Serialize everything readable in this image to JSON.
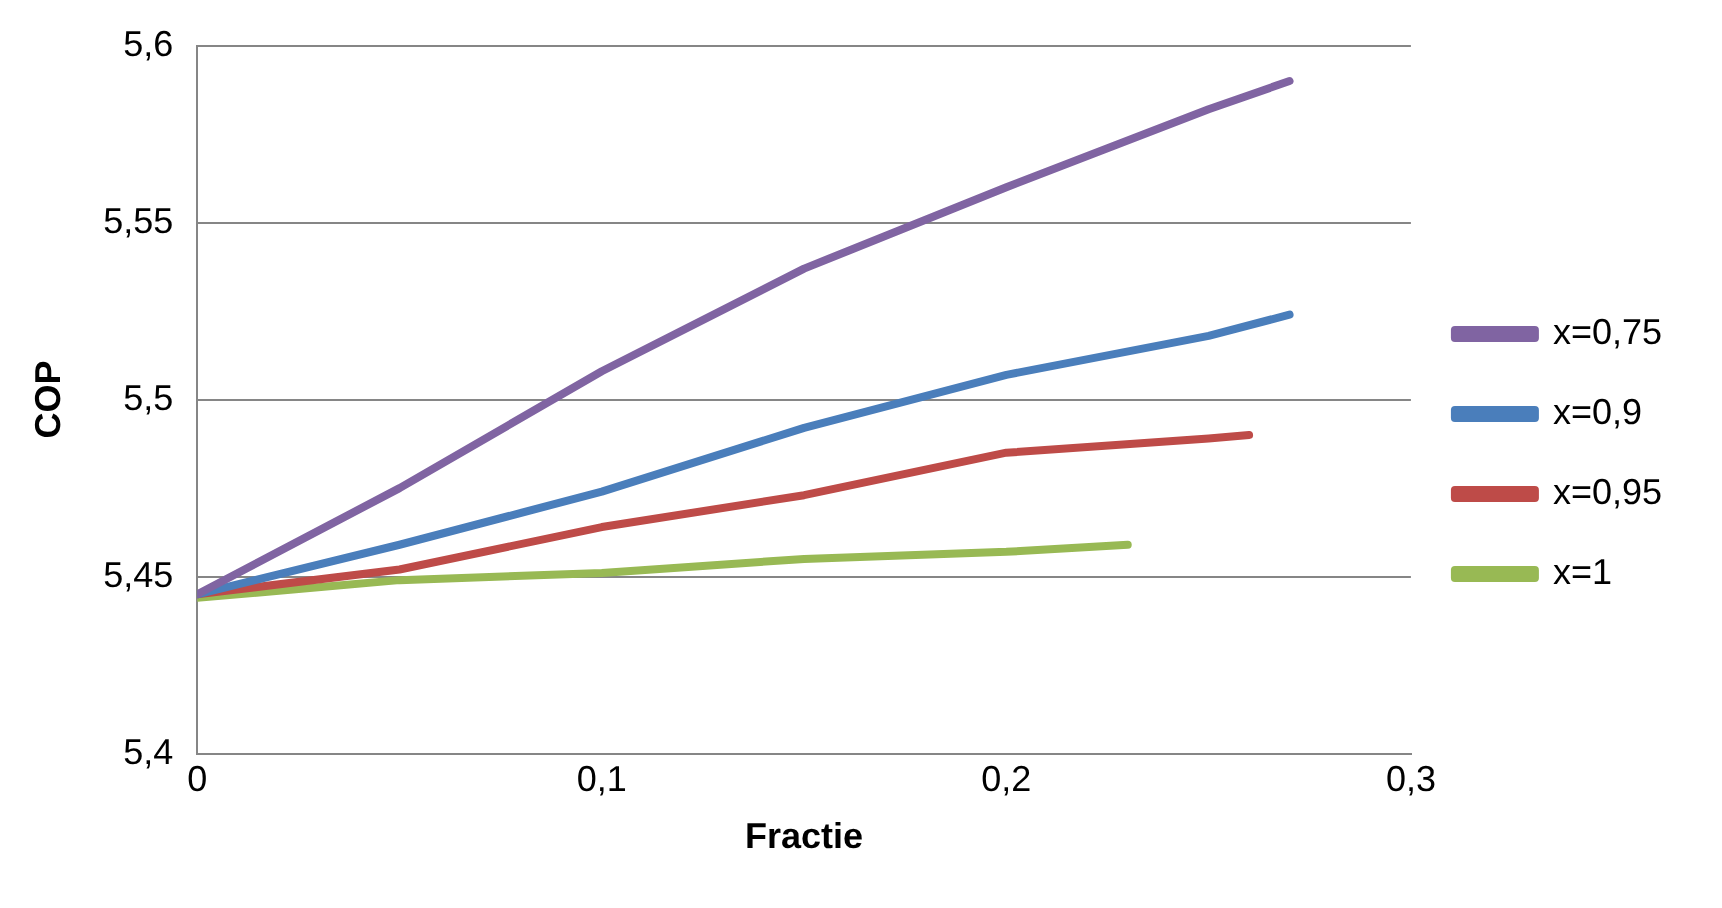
{
  "chart_data": {
    "type": "line",
    "xlabel": "Fractie",
    "ylabel": "COP",
    "xlim": [
      0,
      0.3
    ],
    "xticks": [
      {
        "value": 0,
        "label": "0"
      },
      {
        "value": 0.1,
        "label": "0,1"
      },
      {
        "value": 0.2,
        "label": "0,2"
      },
      {
        "value": 0.3,
        "label": "0,3"
      }
    ],
    "ylim": [
      5.4,
      5.6
    ],
    "yticks": [
      {
        "value": 5.4,
        "label": "5,4"
      },
      {
        "value": 5.45,
        "label": "5,45"
      },
      {
        "value": 5.5,
        "label": "5,5"
      },
      {
        "value": 5.55,
        "label": "5,55"
      },
      {
        "value": 5.6,
        "label": "5,6"
      }
    ],
    "grid": "y",
    "legend": "right",
    "marker": "none",
    "line_style": "solid",
    "series": [
      {
        "name": "x=0,75",
        "color": "#8064a2",
        "x": [
          0,
          0.05,
          0.1,
          0.15,
          0.2,
          0.25,
          0.27
        ],
        "values": [
          5.445,
          5.475,
          5.508,
          5.537,
          5.56,
          5.582,
          5.59
        ]
      },
      {
        "name": "x=0,9",
        "color": "#4a7ebb",
        "x": [
          0,
          0.05,
          0.1,
          0.15,
          0.2,
          0.25,
          0.27
        ],
        "values": [
          5.445,
          5.459,
          5.474,
          5.492,
          5.507,
          5.518,
          5.524
        ]
      },
      {
        "name": "x=0,95",
        "color": "#be4b48",
        "x": [
          0,
          0.05,
          0.1,
          0.15,
          0.2,
          0.25,
          0.26
        ],
        "values": [
          5.445,
          5.452,
          5.464,
          5.473,
          5.485,
          5.489,
          5.49
        ]
      },
      {
        "name": "x=1",
        "color": "#98b954",
        "x": [
          0,
          0.05,
          0.1,
          0.15,
          0.2,
          0.23
        ],
        "values": [
          5.444,
          5.449,
          5.451,
          5.455,
          5.457,
          5.459
        ]
      }
    ]
  }
}
